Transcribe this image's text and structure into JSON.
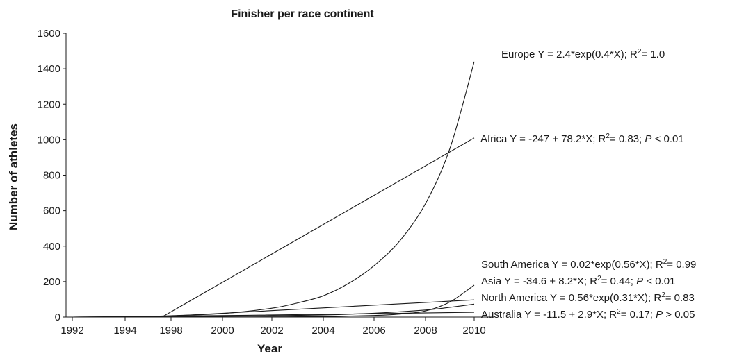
{
  "chart_data": {
    "type": "line",
    "title": "Finisher per race continent",
    "xlabel": "Year",
    "ylabel": "Number of athletes",
    "xlim": [
      1992,
      2010
    ],
    "ylim": [
      0,
      1600
    ],
    "x_ticks": [
      1992,
      1994,
      1998,
      2000,
      2002,
      2004,
      2006,
      2008,
      2010
    ],
    "y_ticks": [
      0,
      200,
      400,
      600,
      800,
      1000,
      1200,
      1400,
      1600
    ],
    "grid": false,
    "series": [
      {
        "name": "Europe",
        "formula": " Y = 2.4*exp(0.4*X); R",
        "formula_end": "= 1.0",
        "x": [
          1992,
          1994,
          1996,
          1998,
          2000,
          2002,
          2003,
          2004,
          2005,
          2006,
          2007,
          2008,
          2009,
          2010
        ],
        "values": [
          0,
          2,
          4,
          8,
          20,
          50,
          80,
          120,
          190,
          290,
          430,
          640,
          950,
          1440
        ]
      },
      {
        "name": "Africa",
        "formula": " Y = -247 + 78.2*X; R",
        "formula_end": "= 0.83; ",
        "p_symbol": "P",
        "p_end": " < 0.01",
        "x": [
          1992,
          1997.2,
          2010
        ],
        "values": [
          0,
          0,
          1010
        ]
      },
      {
        "name": "South America",
        "formula": " Y = 0.02*exp(0.56*X); R",
        "formula_end": "= 0.99",
        "x": [
          1992,
          1998,
          2002,
          2004,
          2006,
          2007,
          2008,
          2009,
          2010
        ],
        "values": [
          0,
          0,
          1,
          3,
          9,
          17,
          35,
          85,
          180
        ]
      },
      {
        "name": "Asia",
        "formula": " Y = -34.6 + 8.2*X; R",
        "formula_end": "= 0.44; ",
        "p_symbol": "P",
        "p_end": " < 0.01",
        "x": [
          1992,
          1996.2,
          2010
        ],
        "values": [
          0,
          0,
          97
        ]
      },
      {
        "name": "North America",
        "formula": " Y = 0.56*exp(0.31*X); R",
        "formula_end": "= 0.83",
        "x": [
          1992,
          1996,
          2000,
          2004,
          2006,
          2008,
          2009,
          2010
        ],
        "values": [
          0,
          1,
          4,
          12,
          22,
          40,
          55,
          73
        ]
      },
      {
        "name": "Australia",
        "formula": " Y = -11.5 + 2.9*X; R",
        "formula_end": "= 0.17; ",
        "p_symbol": "P",
        "p_end": " > 0.05",
        "x": [
          1992,
          2001,
          2010
        ],
        "values": [
          0,
          10,
          27
        ]
      }
    ],
    "superscript": "2"
  }
}
